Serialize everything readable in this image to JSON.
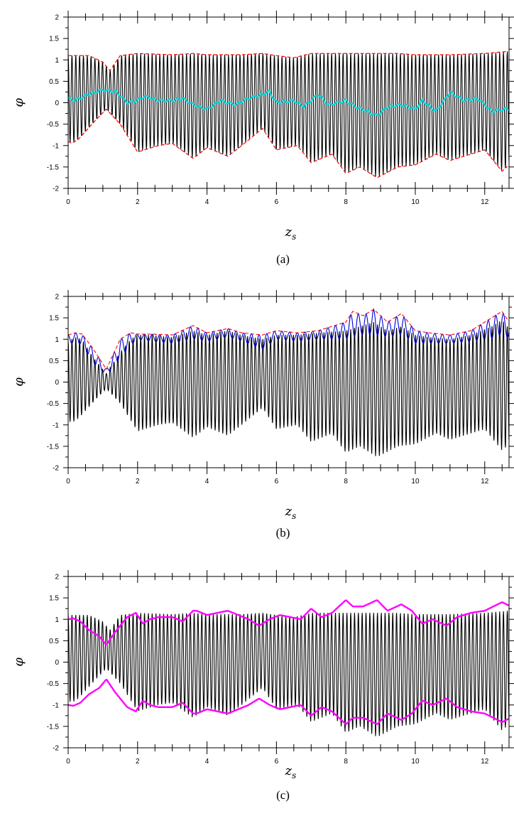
{
  "chart_data": [
    {
      "type": "line",
      "panel": "a",
      "caption": "(a)",
      "xlabel": "z_s",
      "ylabel": "φ",
      "xlim": [
        0,
        12.7
      ],
      "ylim": [
        -2,
        2
      ],
      "xticks": [
        0,
        2,
        4,
        6,
        8,
        10,
        12
      ],
      "yticks": [
        2,
        1.5,
        1,
        0.5,
        0,
        -0.5,
        -1,
        -1.5,
        -2
      ],
      "grid": false,
      "oscillation_period": 0.11,
      "series": [
        {
          "name": "",
          "color": "#000000",
          "style": "rapid oscillation between lower and upper envelope",
          "upper": {
            "x": [
              0,
              0.6,
              1.0,
              1.2,
              1.5,
              2.0,
              3.0,
              3.6,
              4.0,
              5.0,
              5.6,
              6.0,
              6.5,
              7.0,
              8.0,
              8.8,
              9.5,
              10.0,
              11.0,
              12.0,
              12.7
            ],
            "y": [
              1.1,
              1.1,
              0.95,
              0.75,
              1.1,
              1.15,
              1.12,
              1.15,
              1.12,
              1.12,
              1.15,
              1.1,
              1.05,
              1.15,
              1.15,
              1.15,
              1.15,
              1.12,
              1.12,
              1.15,
              1.2
            ]
          },
          "lower": {
            "x": [
              0,
              0.1,
              0.3,
              0.8,
              1.1,
              1.5,
              2.0,
              2.6,
              3.0,
              3.6,
              4.0,
              4.6,
              5.0,
              5.6,
              6.0,
              6.6,
              7.0,
              7.6,
              8.0,
              8.4,
              8.9,
              9.5,
              10.0,
              10.6,
              11.0,
              12.0,
              12.5,
              12.7
            ],
            "y": [
              -0.9,
              -0.95,
              -0.85,
              -0.4,
              -0.15,
              -0.5,
              -1.15,
              -1.0,
              -0.95,
              -1.3,
              -1.05,
              -1.25,
              -1.0,
              -0.6,
              -1.1,
              -1.0,
              -1.4,
              -1.2,
              -1.65,
              -1.5,
              -1.75,
              -1.5,
              -1.45,
              -1.2,
              -1.35,
              -1.1,
              -1.6,
              -1.45
            ]
          }
        },
        {
          "name": "",
          "color": "#ff0000",
          "style": "dashed",
          "role": "upper and lower envelope"
        },
        {
          "name": "",
          "color": "#00d8e0",
          "role": "mean",
          "x": [
            0,
            0.2,
            0.6,
            1.0,
            1.4,
            1.7,
            2.0,
            2.2,
            2.6,
            3.0,
            3.3,
            3.6,
            4.0,
            4.4,
            4.8,
            5.2,
            5.8,
            6.0,
            6.5,
            6.8,
            7.2,
            7.5,
            8.0,
            8.3,
            8.6,
            8.9,
            9.2,
            9.6,
            10.0,
            10.2,
            10.6,
            11.0,
            11.4,
            11.8,
            12.2,
            12.6
          ],
          "y": [
            0.1,
            0.05,
            0.2,
            0.3,
            0.25,
            0.0,
            0.05,
            0.15,
            0.05,
            0.05,
            0.1,
            -0.05,
            -0.15,
            0.05,
            -0.05,
            0.1,
            0.25,
            0.0,
            0.05,
            -0.1,
            0.2,
            -0.05,
            0.05,
            -0.1,
            -0.2,
            -0.3,
            -0.1,
            -0.05,
            -0.15,
            0.05,
            -0.2,
            0.25,
            0.05,
            0.1,
            -0.2,
            -0.15
          ]
        }
      ]
    },
    {
      "type": "line",
      "panel": "b",
      "caption": "(b)",
      "xlabel": "z_s",
      "ylabel": "φ",
      "xlim": [
        0,
        12.7
      ],
      "ylim": [
        -2,
        2
      ],
      "xticks": [
        0,
        2,
        4,
        6,
        8,
        10,
        12
      ],
      "yticks": [
        2,
        1.5,
        1,
        0.5,
        0,
        -0.5,
        -1,
        -1.5,
        -2
      ],
      "grid": false,
      "oscillation_period": 0.11,
      "series": [
        {
          "name": "",
          "color": "#000000",
          "style": "rapid oscillation between lower and upper envelope",
          "upper": {
            "x": [
              0,
              0.2,
              0.4,
              0.7,
              1.1,
              1.5,
              1.8,
              2.0,
              2.4,
              3.0,
              3.6,
              4.0,
              4.6,
              5.0,
              5.6,
              6.0,
              6.6,
              7.2,
              8.0,
              8.4,
              8.8,
              9.2,
              9.6,
              10.0,
              10.4,
              11.0,
              11.6,
              12.2,
              12.5,
              12.7
            ],
            "y": [
              0.95,
              1.05,
              1.0,
              0.6,
              0.2,
              0.7,
              1.0,
              1.1,
              1.1,
              1.05,
              1.2,
              1.1,
              1.2,
              1.1,
              1.0,
              1.1,
              1.1,
              1.15,
              1.2,
              1.3,
              1.4,
              1.2,
              1.3,
              1.1,
              1.05,
              1.0,
              1.1,
              1.3,
              1.45,
              1.25
            ]
          },
          "lower": {
            "x": [
              0,
              0.1,
              0.3,
              0.8,
              1.1,
              1.5,
              2.0,
              2.6,
              3.0,
              3.6,
              4.0,
              4.6,
              5.0,
              5.6,
              6.0,
              6.6,
              7.0,
              7.6,
              8.0,
              8.4,
              8.9,
              9.5,
              10.0,
              10.6,
              11.0,
              12.0,
              12.5,
              12.7
            ],
            "y": [
              -0.9,
              -0.95,
              -0.85,
              -0.4,
              -0.15,
              -0.5,
              -1.15,
              -1.0,
              -0.95,
              -1.3,
              -1.05,
              -1.25,
              -1.0,
              -0.6,
              -1.1,
              -1.0,
              -1.4,
              -1.2,
              -1.65,
              -1.5,
              -1.75,
              -1.5,
              -1.45,
              -1.2,
              -1.35,
              -1.1,
              -1.6,
              -1.45
            ]
          }
        },
        {
          "name": "",
          "color": "#0000e0",
          "role": "upper envelope (oscillating)"
        },
        {
          "name": "",
          "color": "#ff0000",
          "style": "dashed",
          "role": "upper envelope"
        }
      ],
      "blue_envelope": {
        "hi": {
          "x": [
            0,
            0.2,
            0.4,
            0.7,
            1.1,
            1.5,
            1.8,
            2.0,
            2.4,
            3.0,
            3.6,
            4.0,
            4.6,
            5.0,
            5.6,
            6.0,
            6.6,
            7.2,
            8.0,
            8.2,
            8.5,
            8.8,
            9.2,
            9.6,
            10.0,
            10.4,
            11.0,
            11.6,
            12.2,
            12.5,
            12.7
          ],
          "y": [
            1.1,
            1.15,
            1.12,
            0.8,
            0.3,
            1.0,
            1.15,
            1.12,
            1.12,
            1.1,
            1.32,
            1.15,
            1.25,
            1.15,
            1.1,
            1.2,
            1.15,
            1.2,
            1.4,
            1.65,
            1.55,
            1.7,
            1.4,
            1.6,
            1.2,
            1.15,
            1.1,
            1.2,
            1.5,
            1.65,
            1.4
          ]
        },
        "lo": {
          "x": [
            0,
            0.2,
            0.4,
            0.7,
            1.1,
            1.5,
            1.8,
            2.0,
            2.4,
            3.0,
            3.6,
            4.0,
            4.6,
            5.0,
            5.6,
            6.0,
            6.6,
            7.2,
            8.0,
            8.4,
            8.8,
            9.2,
            9.6,
            10.0,
            10.4,
            11.0,
            11.6,
            12.2,
            12.5,
            12.7
          ],
          "y": [
            0.85,
            0.95,
            0.85,
            0.45,
            0.15,
            0.55,
            0.85,
            1.0,
            0.95,
            0.9,
            1.0,
            0.95,
            1.05,
            0.95,
            0.75,
            1.0,
            0.95,
            1.0,
            1.0,
            1.1,
            1.1,
            1.05,
            1.1,
            0.9,
            0.9,
            0.9,
            0.95,
            1.0,
            1.1,
            1.0
          ]
        }
      }
    },
    {
      "type": "line",
      "panel": "c",
      "caption": "(c)",
      "xlabel": "z_s",
      "ylabel": "φ",
      "xlim": [
        0,
        12.7
      ],
      "ylim": [
        -2,
        2
      ],
      "xticks": [
        0,
        2,
        4,
        6,
        8,
        10,
        12
      ],
      "yticks": [
        2,
        1.5,
        1,
        0.5,
        0,
        -0.5,
        -1,
        -1.5,
        -2
      ],
      "grid": false,
      "oscillation_period": 0.11,
      "series": [
        {
          "name": "",
          "color": "#000000",
          "style": "rapid oscillation between lower and upper envelope",
          "upper": {
            "x": [
              0,
              0.6,
              1.0,
              1.2,
              1.5,
              2.0,
              3.0,
              3.6,
              4.0,
              5.0,
              5.6,
              6.0,
              6.5,
              7.0,
              8.0,
              8.8,
              9.5,
              10.0,
              11.0,
              12.0,
              12.7
            ],
            "y": [
              1.1,
              1.1,
              0.95,
              0.75,
              1.1,
              1.15,
              1.12,
              1.15,
              1.12,
              1.12,
              1.15,
              1.1,
              1.05,
              1.15,
              1.15,
              1.15,
              1.15,
              1.12,
              1.12,
              1.15,
              1.2
            ]
          },
          "lower": {
            "x": [
              0,
              0.1,
              0.3,
              0.8,
              1.1,
              1.5,
              2.0,
              2.6,
              3.0,
              3.6,
              4.0,
              4.6,
              5.0,
              5.6,
              6.0,
              6.6,
              7.0,
              7.6,
              8.0,
              8.4,
              8.9,
              9.5,
              10.0,
              10.6,
              11.0,
              12.0,
              12.5,
              12.7
            ],
            "y": [
              -0.9,
              -0.95,
              -0.85,
              -0.4,
              -0.15,
              -0.5,
              -1.15,
              -1.0,
              -0.95,
              -1.3,
              -1.05,
              -1.25,
              -1.0,
              -0.6,
              -1.1,
              -1.0,
              -1.4,
              -1.2,
              -1.65,
              -1.5,
              -1.75,
              -1.5,
              -1.45,
              -1.2,
              -1.35,
              -1.1,
              -1.6,
              -1.45
            ]
          }
        },
        {
          "name": "",
          "color": "#ff00ff",
          "role": "symmetric amplitude envelope (±)",
          "x": [
            0,
            0.15,
            0.35,
            0.6,
            0.9,
            1.1,
            1.35,
            1.7,
            1.95,
            2.15,
            2.35,
            2.6,
            3.0,
            3.3,
            3.6,
            3.7,
            4.0,
            4.3,
            4.6,
            4.9,
            5.2,
            5.5,
            5.8,
            6.1,
            6.4,
            6.7,
            7.0,
            7.3,
            7.6,
            8.0,
            8.2,
            8.5,
            8.9,
            9.2,
            9.6,
            9.9,
            10.2,
            10.5,
            10.9,
            11.2,
            11.6,
            12.0,
            12.5,
            12.7
          ],
          "y": [
            1.0,
            1.02,
            0.95,
            0.75,
            0.6,
            0.4,
            0.7,
            1.05,
            1.15,
            0.9,
            1.0,
            1.05,
            1.05,
            0.95,
            1.2,
            1.2,
            1.1,
            1.15,
            1.2,
            1.1,
            1.0,
            0.85,
            1.0,
            1.1,
            1.05,
            1.0,
            1.25,
            1.05,
            1.15,
            1.45,
            1.3,
            1.3,
            1.45,
            1.2,
            1.35,
            1.2,
            0.9,
            1.0,
            0.85,
            1.05,
            1.15,
            1.2,
            1.4,
            1.32
          ]
        }
      ]
    }
  ]
}
